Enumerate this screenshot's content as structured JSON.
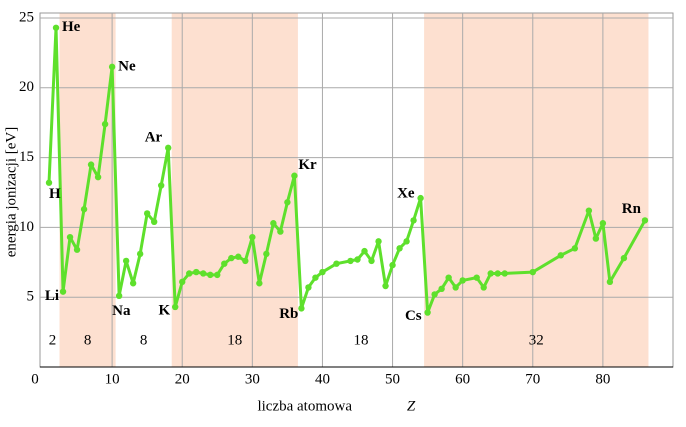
{
  "chart_data": {
    "type": "line",
    "y_label": "energia jonizacji [eV]",
    "x_label": "liczba atomowa",
    "x_label_symbol": "Z",
    "color": "#5ee02c",
    "band_color": "#fde0d0",
    "grid": true,
    "xlim": [
      0,
      90
    ],
    "xticks": [
      0,
      10,
      20,
      30,
      40,
      50,
      60,
      70,
      80
    ],
    "ylim": [
      0,
      25
    ],
    "yticks": [
      5,
      10,
      15,
      20,
      25
    ],
    "x": [
      1,
      2,
      3,
      4,
      5,
      6,
      7,
      8,
      9,
      10,
      11,
      12,
      13,
      14,
      15,
      16,
      17,
      18,
      19,
      20,
      21,
      22,
      23,
      24,
      25,
      26,
      27,
      28,
      29,
      30,
      31,
      32,
      33,
      34,
      35,
      36,
      37,
      38,
      39,
      40,
      42,
      44,
      45,
      46,
      47,
      48,
      49,
      50,
      51,
      52,
      53,
      54,
      55,
      56,
      57,
      58,
      59,
      60,
      62,
      63,
      64,
      65,
      66,
      70,
      74,
      76,
      78,
      79,
      80,
      81,
      83,
      86
    ],
    "values": [
      13.2,
      24.3,
      5.4,
      9.3,
      8.4,
      11.3,
      14.5,
      13.6,
      17.4,
      21.5,
      5.1,
      7.6,
      6.0,
      8.1,
      11.0,
      10.4,
      13.0,
      15.7,
      4.3,
      6.1,
      6.7,
      6.8,
      6.7,
      6.6,
      6.6,
      7.4,
      7.8,
      7.9,
      7.6,
      9.3,
      6.0,
      8.1,
      10.3,
      9.7,
      11.8,
      13.7,
      4.2,
      5.7,
      6.4,
      6.8,
      7.4,
      7.6,
      7.7,
      8.3,
      7.6,
      9.0,
      5.8,
      7.3,
      8.5,
      9.0,
      10.5,
      12.1,
      3.9,
      5.2,
      5.6,
      6.4,
      5.7,
      6.2,
      6.4,
      5.7,
      6.7,
      6.7,
      6.7,
      6.8,
      8.0,
      8.5,
      11.2,
      9.2,
      10.3,
      6.1,
      7.8,
      10.5
    ],
    "point_labels": [
      "H",
      "He",
      "Li",
      null,
      null,
      null,
      null,
      null,
      null,
      "Ne",
      "Na",
      null,
      null,
      null,
      null,
      null,
      null,
      "Ar",
      "K",
      null,
      null,
      null,
      null,
      null,
      null,
      null,
      null,
      null,
      null,
      null,
      null,
      null,
      null,
      null,
      null,
      "Kr",
      "Rb",
      null,
      null,
      null,
      null,
      null,
      null,
      null,
      null,
      null,
      null,
      null,
      null,
      null,
      null,
      "Xe",
      "Cs",
      null,
      null,
      null,
      null,
      null,
      null,
      null,
      null,
      null,
      null,
      null,
      null,
      null,
      null,
      null,
      null,
      null,
      null,
      "Rn"
    ],
    "period_sizes": [
      2,
      8,
      8,
      18,
      18,
      32
    ]
  }
}
